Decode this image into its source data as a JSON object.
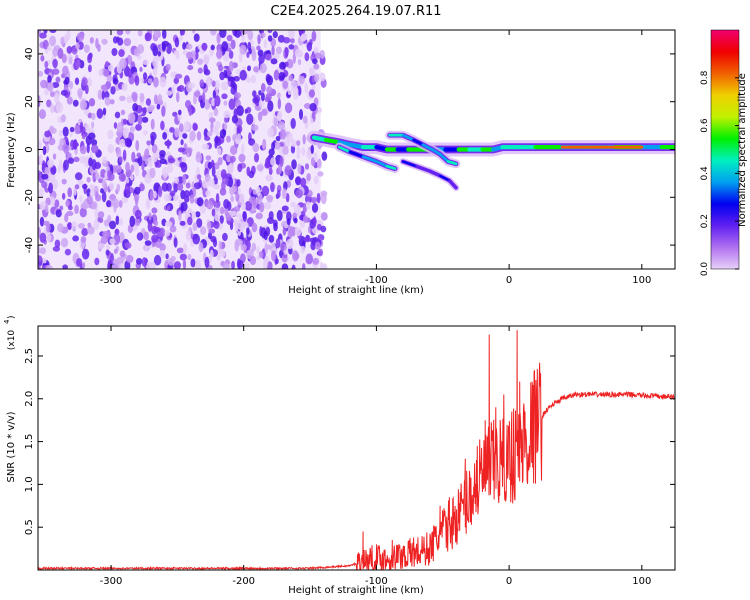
{
  "title": "C2E4.2025.264.19.07.R11",
  "chart_data": [
    {
      "type": "heatmap",
      "xlabel": "Height of straight line (km)",
      "ylabel": "Frequency (Hz)",
      "xlim": [
        -355,
        125
      ],
      "ylim": [
        -50,
        50
      ],
      "xticks": [
        -300,
        -200,
        -100,
        0,
        100
      ],
      "yticks": [
        -40,
        -20,
        0,
        20,
        40
      ],
      "colorbar": {
        "label": "Normalized spectral amplitude",
        "range": [
          0,
          1
        ],
        "ticks": [
          0.0,
          0.2,
          0.4,
          0.6,
          0.8
        ],
        "tick_labels": [
          "0.0",
          "0.2",
          "0.4",
          "0.6",
          "0.8"
        ],
        "colormap": [
          "#e8d0f8",
          "#b070f0",
          "#6020f0",
          "#0000f0",
          "#00a0f0",
          "#00f0c0",
          "#00f000",
          "#c0f000",
          "#f0d000",
          "#f06000",
          "#f00000",
          "#f00070"
        ]
      },
      "features": {
        "noise_region_x": [
          -355,
          -142
        ],
        "main_ridge": [
          [
            -147,
            5
          ],
          [
            -138,
            4
          ],
          [
            -128,
            3
          ],
          [
            -120,
            2
          ],
          [
            -110,
            1
          ],
          [
            -100,
            1
          ],
          [
            -92,
            0
          ],
          [
            -84,
            0
          ],
          [
            -76,
            0
          ],
          [
            -68,
            0
          ],
          [
            -58,
            0
          ],
          [
            -48,
            0
          ],
          [
            -38,
            0
          ],
          [
            -30,
            0
          ],
          [
            -20,
            0
          ],
          [
            -12,
            0
          ],
          [
            -5,
            1
          ],
          [
            5,
            1
          ],
          [
            20,
            1
          ],
          [
            40,
            1
          ],
          [
            60,
            1
          ],
          [
            80,
            1
          ],
          [
            100,
            1
          ],
          [
            115,
            1
          ],
          [
            125,
            1
          ]
        ],
        "lower_branch": [
          [
            -128,
            1
          ],
          [
            -120,
            -1
          ],
          [
            -110,
            -3
          ],
          [
            -100,
            -5
          ],
          [
            -92,
            -7
          ],
          [
            -86,
            -8
          ]
        ],
        "upper_branch": [
          [
            -90,
            6
          ],
          [
            -80,
            6
          ],
          [
            -72,
            4
          ],
          [
            -65,
            2
          ],
          [
            -58,
            0
          ],
          [
            -52,
            -2
          ],
          [
            -46,
            -5
          ],
          [
            -40,
            -6
          ]
        ],
        "tail_branch": [
          [
            -80,
            -5
          ],
          [
            -70,
            -7
          ],
          [
            -60,
            -9
          ],
          [
            -52,
            -11
          ],
          [
            -45,
            -13
          ],
          [
            -40,
            -16
          ]
        ]
      }
    },
    {
      "type": "line",
      "xlabel": "Height of straight line (km)",
      "ylabel": "SNR (10 * v/v)",
      "y_scale_label": "(x10",
      "y_scale_exp": "4",
      "xlim": [
        -355,
        125
      ],
      "ylim": [
        0,
        2.85
      ],
      "xticks": [
        -300,
        -200,
        -100,
        0,
        100
      ],
      "yticks": [
        0.5,
        1.0,
        1.5,
        2.0,
        2.5
      ],
      "line_color": "#ee2222",
      "envelope": [
        [
          -355,
          0.02
        ],
        [
          -150,
          0.02
        ],
        [
          -120,
          0.05
        ],
        [
          -110,
          0.1
        ],
        [
          -100,
          0.14
        ],
        [
          -90,
          0.12
        ],
        [
          -80,
          0.18
        ],
        [
          -70,
          0.2
        ],
        [
          -60,
          0.25
        ],
        [
          -50,
          0.45
        ],
        [
          -40,
          0.6
        ],
        [
          -30,
          0.85
        ],
        [
          -20,
          1.1
        ],
        [
          -10,
          1.25
        ],
        [
          0,
          1.3
        ],
        [
          10,
          1.45
        ],
        [
          20,
          1.7
        ],
        [
          30,
          1.9
        ],
        [
          40,
          2.0
        ],
        [
          50,
          2.05
        ],
        [
          70,
          2.05
        ],
        [
          90,
          2.05
        ],
        [
          110,
          2.03
        ],
        [
          125,
          2.02
        ]
      ],
      "spikes": [
        [
          -110,
          0.45
        ],
        [
          -88,
          0.35
        ],
        [
          -72,
          0.38
        ],
        [
          -52,
          0.75
        ],
        [
          -45,
          0.85
        ],
        [
          -33,
          1.3
        ],
        [
          -24,
          1.45
        ],
        [
          -18,
          1.75
        ],
        [
          -15,
          2.75
        ],
        [
          -10,
          1.9
        ],
        [
          -4,
          2.05
        ],
        [
          2,
          1.85
        ],
        [
          6,
          2.8
        ],
        [
          8,
          2.2
        ],
        [
          12,
          1.85
        ]
      ]
    }
  ]
}
